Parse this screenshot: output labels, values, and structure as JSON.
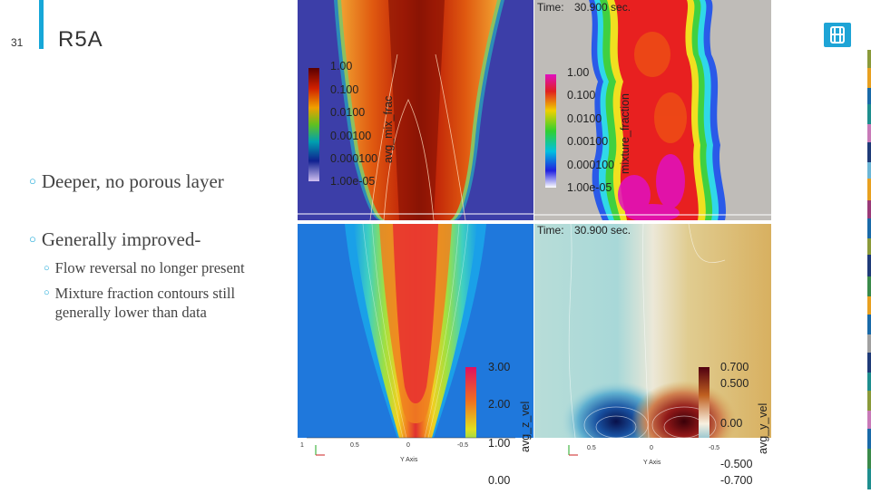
{
  "slide": {
    "number": "31",
    "title": "R5A"
  },
  "bullets": [
    {
      "text": "Deeper, no porous layer"
    },
    {
      "text": "Generally improved-",
      "subs": [
        "Flow reversal no longer present",
        "Mixture fraction contours still generally lower than data"
      ]
    }
  ],
  "panels": {
    "top_left": {
      "var": "avg_mix_frac",
      "ticks": [
        "1.00",
        "0.100",
        "0.0100",
        "0.00100",
        "0.000100",
        "1.00e-05"
      ]
    },
    "top_right": {
      "time_label": "Time:",
      "time_value": "30.900 sec.",
      "var": "mixture_fraction",
      "ticks": [
        "1.00",
        "0.100",
        "0.0100",
        "0.00100",
        "0.000100",
        "1.00e-05"
      ]
    },
    "bottom_left": {
      "var": "avg_z_vel",
      "ticks": [
        "3.00",
        "2.00",
        "1.00",
        "0.00"
      ],
      "x_axis": {
        "label": "Y Axis",
        "ticks": [
          "1",
          "0.5",
          "0",
          "-0.5"
        ]
      }
    },
    "bottom_right": {
      "time_label": "Time:",
      "time_value": "30.900 sec.",
      "var": "avg_y_vel",
      "ticks": [
        "0.700",
        "0.500",
        "0.00",
        "-0.500",
        "-0.700"
      ],
      "x_axis": {
        "label": "Y Axis",
        "ticks": [
          "0.5",
          "0",
          "-0.5"
        ]
      }
    }
  },
  "colors": {
    "accent": "#16a7d8"
  }
}
